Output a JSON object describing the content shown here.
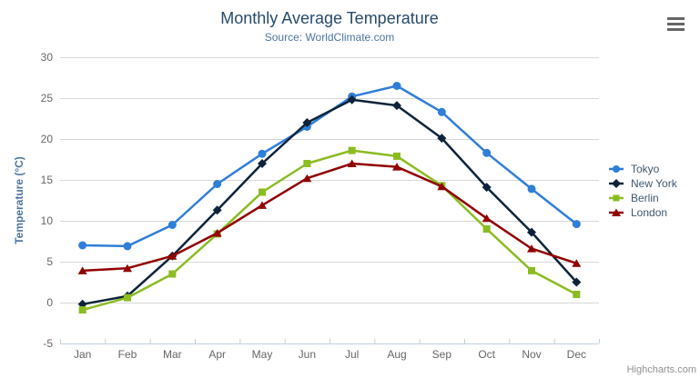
{
  "title": "Monthly Average Temperature",
  "subtitle": "Source: WorldClimate.com",
  "credits": "Highcharts.com",
  "context_menu_icon": "hamburger-menu-icon",
  "chart_data": {
    "type": "line",
    "title": "Monthly Average Temperature",
    "subtitle": "Source: WorldClimate.com",
    "categories": [
      "Jan",
      "Feb",
      "Mar",
      "Apr",
      "May",
      "Jun",
      "Jul",
      "Aug",
      "Sep",
      "Oct",
      "Nov",
      "Dec"
    ],
    "series": [
      {
        "name": "Tokyo",
        "color": "#2f7ed8",
        "marker": "circle",
        "values": [
          7.0,
          6.9,
          9.5,
          14.5,
          18.2,
          21.5,
          25.2,
          26.5,
          23.3,
          18.3,
          13.9,
          9.6
        ]
      },
      {
        "name": "New York",
        "color": "#0d233a",
        "marker": "diamond",
        "values": [
          -0.2,
          0.8,
          5.7,
          11.3,
          17.0,
          22.0,
          24.8,
          24.1,
          20.1,
          14.1,
          8.6,
          2.5
        ]
      },
      {
        "name": "Berlin",
        "color": "#8bbc21",
        "marker": "square",
        "values": [
          -0.9,
          0.6,
          3.5,
          8.4,
          13.5,
          17.0,
          18.6,
          17.9,
          14.3,
          9.0,
          3.9,
          1.0
        ]
      },
      {
        "name": "London",
        "color": "#910000",
        "marker": "triangle",
        "values": [
          3.9,
          4.2,
          5.7,
          8.5,
          11.9,
          15.2,
          17.0,
          16.6,
          14.2,
          10.3,
          6.6,
          4.8
        ]
      }
    ],
    "xlabel": "",
    "ylabel": "Temperature (°C)",
    "ylim": [
      -5,
      30
    ],
    "ytick_step": 5,
    "yticks": [
      "-5",
      "0",
      "5",
      "10",
      "15",
      "20",
      "25",
      "30"
    ],
    "grid": true,
    "legend_position": "right",
    "grid_color": "#d8d8d8",
    "axis_line_color": "#c0d0e0",
    "label_color": "#666666",
    "title_color": "#274b6d",
    "subtitle_color": "#4d759e",
    "legend_text_color": "#3E576F"
  }
}
